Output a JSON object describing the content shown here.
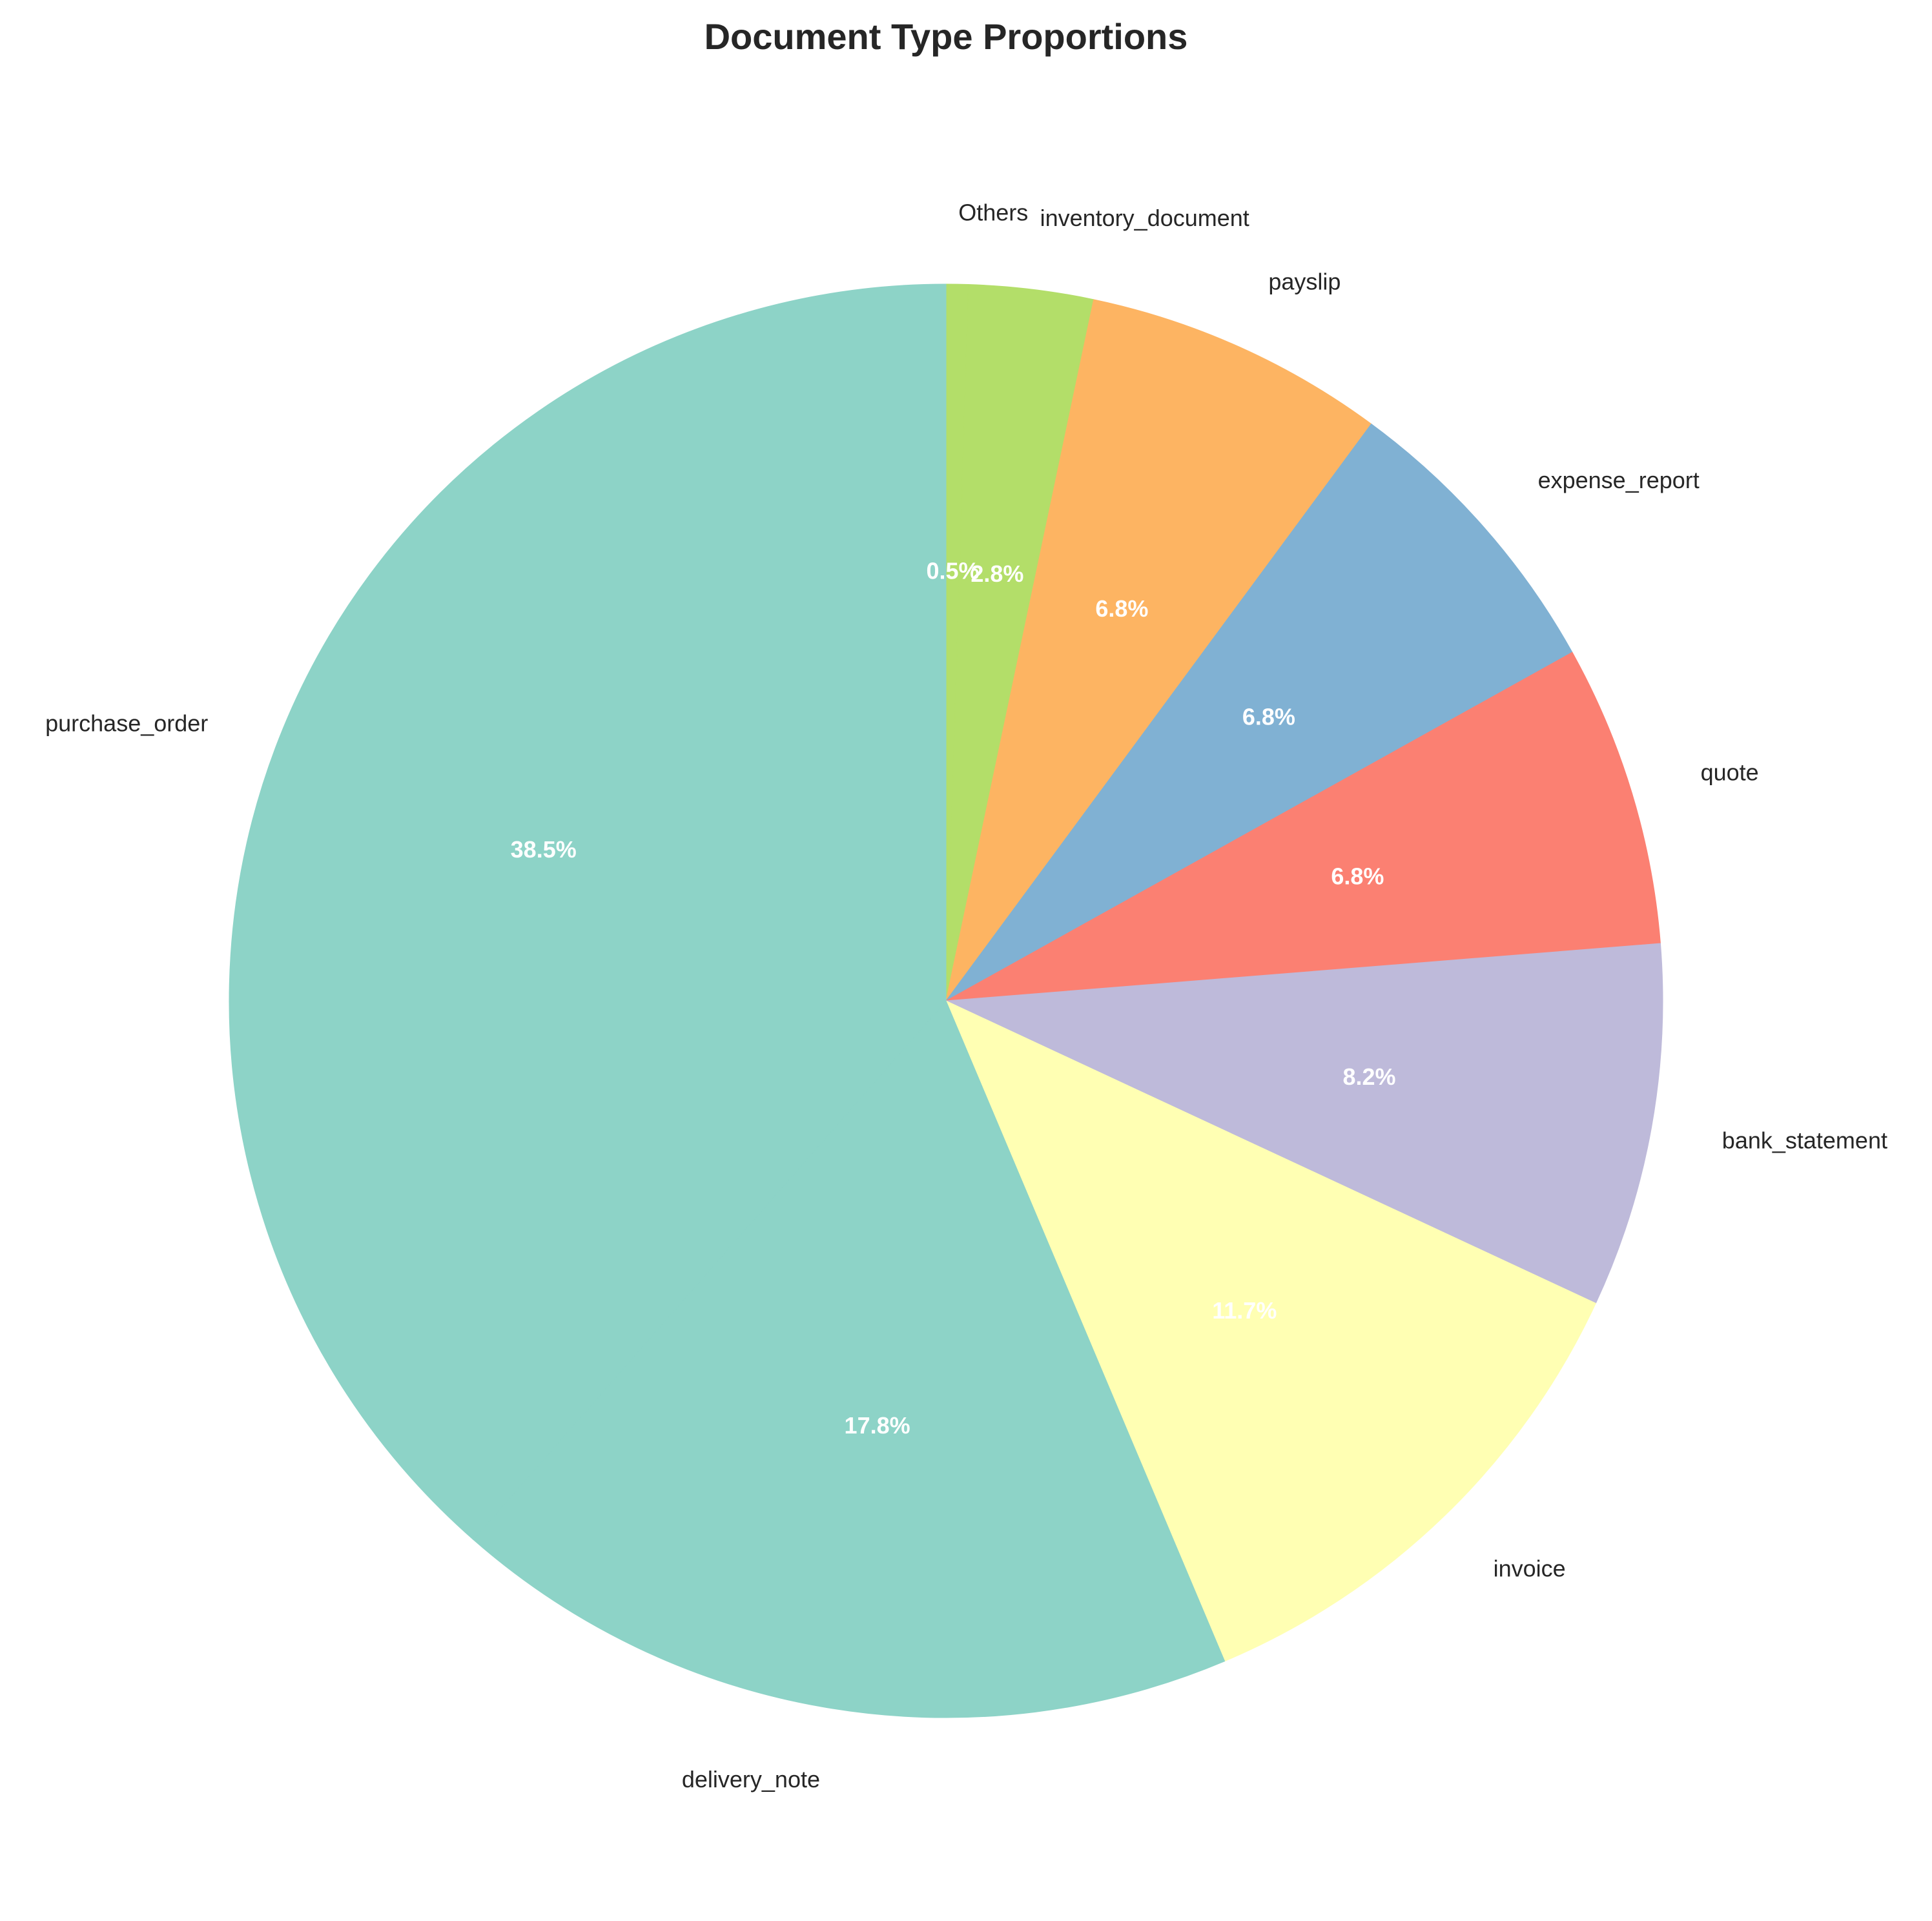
{
  "chart_data": {
    "type": "pie",
    "title": "Document Type Proportions",
    "start_angle_deg": 90,
    "direction": "clockwise",
    "legend": "none",
    "slices": [
      {
        "label": "Others",
        "value": 0.5,
        "pct_label": "0.5%",
        "color": "#b3de69"
      },
      {
        "label": "inventory_document",
        "value": 2.8,
        "pct_label": "2.8%",
        "color": "#b3de69"
      },
      {
        "label": "payslip",
        "value": 6.8,
        "pct_label": "6.8%",
        "color": "#fdb462"
      },
      {
        "label": "expense_report",
        "value": 6.8,
        "pct_label": "6.8%",
        "color": "#80b1d3"
      },
      {
        "label": "quote",
        "value": 6.8,
        "pct_label": "6.8%",
        "color": "#fb8072"
      },
      {
        "label": "bank_statement",
        "value": 8.2,
        "pct_label": "8.2%",
        "color": "#bebada"
      },
      {
        "label": "invoice",
        "value": 11.7,
        "pct_label": "11.7%",
        "color": "#ffffb3"
      },
      {
        "label": "delivery_note",
        "value": 17.8,
        "pct_label": "17.8%",
        "color": "#8dd3c7"
      },
      {
        "label": "purchase_order",
        "value": 38.5,
        "pct_label": "38.5%",
        "color": "#8dd3c7"
      }
    ]
  }
}
